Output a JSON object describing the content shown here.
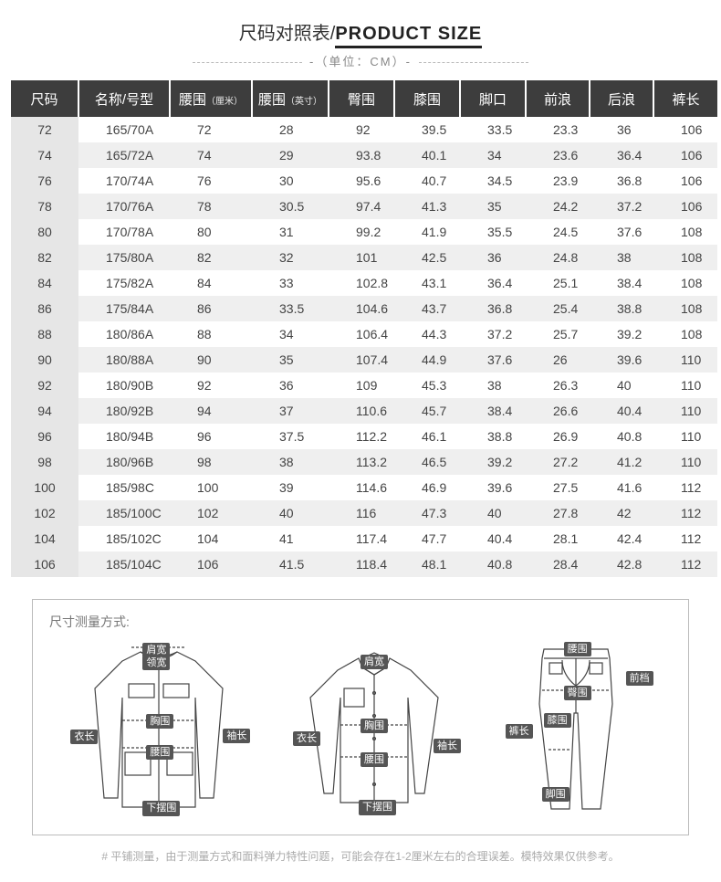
{
  "title_cn": "尺码对照表/",
  "title_en": "PRODUCT SIZE",
  "unit_label": "-（单位：CM）-",
  "table": {
    "headers": [
      {
        "text": "尺码"
      },
      {
        "text": "名称/号型"
      },
      {
        "text": "腰围",
        "sub": "（厘米）"
      },
      {
        "text": "腰围",
        "sub": "（英寸）"
      },
      {
        "text": "臀围"
      },
      {
        "text": "膝围"
      },
      {
        "text": "脚口"
      },
      {
        "text": "前浪"
      },
      {
        "text": "后浪"
      },
      {
        "text": "裤长"
      }
    ],
    "rows": [
      [
        "72",
        "165/70A",
        "72",
        "28",
        "92",
        "39.5",
        "33.5",
        "23.3",
        "36",
        "106"
      ],
      [
        "74",
        "165/72A",
        "74",
        "29",
        "93.8",
        "40.1",
        "34",
        "23.6",
        "36.4",
        "106"
      ],
      [
        "76",
        "170/74A",
        "76",
        "30",
        "95.6",
        "40.7",
        "34.5",
        "23.9",
        "36.8",
        "106"
      ],
      [
        "78",
        "170/76A",
        "78",
        "30.5",
        "97.4",
        "41.3",
        "35",
        "24.2",
        "37.2",
        "106"
      ],
      [
        "80",
        "170/78A",
        "80",
        "31",
        "99.2",
        "41.9",
        "35.5",
        "24.5",
        "37.6",
        "108"
      ],
      [
        "82",
        "175/80A",
        "82",
        "32",
        "101",
        "42.5",
        "36",
        "24.8",
        "38",
        "108"
      ],
      [
        "84",
        "175/82A",
        "84",
        "33",
        "102.8",
        "43.1",
        "36.4",
        "25.1",
        "38.4",
        "108"
      ],
      [
        "86",
        "175/84A",
        "86",
        "33.5",
        "104.6",
        "43.7",
        "36.8",
        "25.4",
        "38.8",
        "108"
      ],
      [
        "88",
        "180/86A",
        "88",
        "34",
        "106.4",
        "44.3",
        "37.2",
        "25.7",
        "39.2",
        "108"
      ],
      [
        "90",
        "180/88A",
        "90",
        "35",
        "107.4",
        "44.9",
        "37.6",
        "26",
        "39.6",
        "110"
      ],
      [
        "92",
        "180/90B",
        "92",
        "36",
        "109",
        "45.3",
        "38",
        "26.3",
        "40",
        "110"
      ],
      [
        "94",
        "180/92B",
        "94",
        "37",
        "110.6",
        "45.7",
        "38.4",
        "26.6",
        "40.4",
        "110"
      ],
      [
        "96",
        "180/94B",
        "96",
        "37.5",
        "112.2",
        "46.1",
        "38.8",
        "26.9",
        "40.8",
        "110"
      ],
      [
        "98",
        "180/96B",
        "98",
        "38",
        "113.2",
        "46.5",
        "39.2",
        "27.2",
        "41.2",
        "110"
      ],
      [
        "100",
        "185/98C",
        "100",
        "39",
        "114.6",
        "46.9",
        "39.6",
        "27.5",
        "41.6",
        "112"
      ],
      [
        "102",
        "185/100C",
        "102",
        "40",
        "116",
        "47.3",
        "40",
        "27.8",
        "42",
        "112"
      ],
      [
        "104",
        "185/102C",
        "104",
        "41",
        "117.4",
        "47.7",
        "40.4",
        "28.1",
        "42.4",
        "112"
      ],
      [
        "106",
        "185/104C",
        "106",
        "41.5",
        "118.4",
        "48.1",
        "40.8",
        "28.4",
        "42.8",
        "112"
      ]
    ],
    "header_bg": "#3d3d3d",
    "header_fg": "#ffffff",
    "row_even_bg": "#efefef",
    "row_odd_bg": "#ffffff",
    "first_col_bg": "#e6e6e6",
    "text_color": "#444444"
  },
  "measure": {
    "title": "尺寸测量方式:",
    "jacket": {
      "labels": {
        "shoulder": "肩宽",
        "collar": "领宽",
        "chest": "胸围",
        "length": "衣长",
        "waist": "腰围",
        "hem": "下摆围",
        "sleeve": "袖长"
      }
    },
    "shirt": {
      "labels": {
        "shoulder": "肩宽",
        "chest": "胸围",
        "length": "衣长",
        "waist": "腰围",
        "hem": "下摆围",
        "sleeve": "袖长"
      }
    },
    "pants": {
      "labels": {
        "waist": "腰围",
        "rise": "前档",
        "hip": "臀围",
        "knee": "膝围",
        "length": "裤长",
        "leg": "脚围"
      }
    }
  },
  "disclaimer": "#    平铺测量，由于测量方式和面料弹力特性问题，可能会存在1-2厘米左右的合理误差。模特效果仅供参考。"
}
